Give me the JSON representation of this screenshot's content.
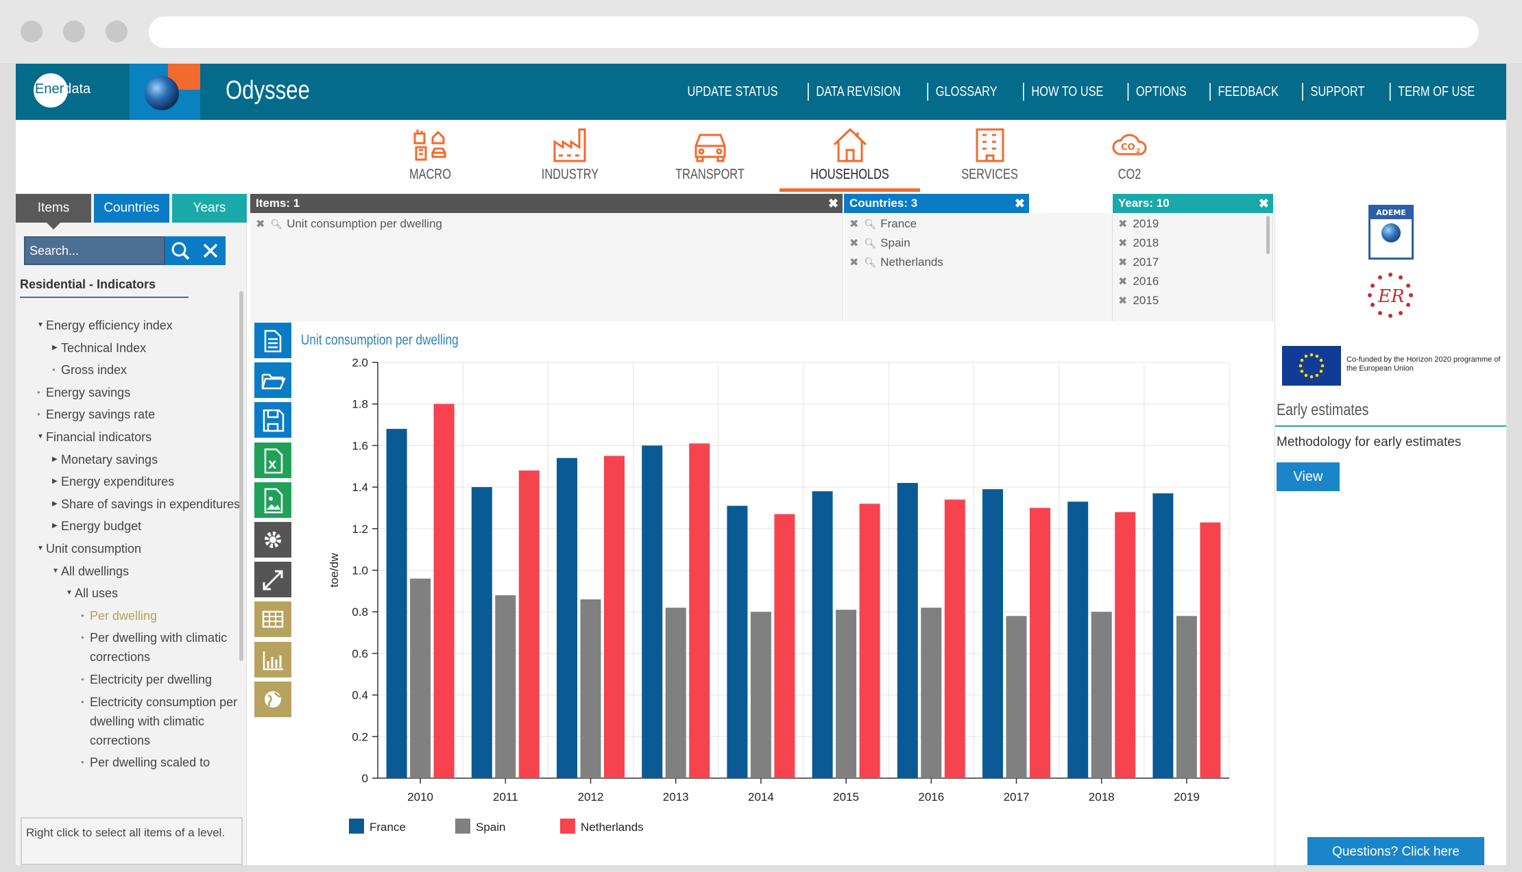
{
  "header": {
    "logo_text": "Enerdata",
    "logo_prefix": "Ener",
    "logo_suffix": "data",
    "app_title": "Odyssee",
    "nav_links": [
      "UPDATE STATUS",
      "DATA REVISION",
      "GLOSSARY",
      "HOW TO USE",
      "OPTIONS",
      "FEEDBACK",
      "SUPPORT",
      "TERM OF USE"
    ]
  },
  "sectors": [
    {
      "label": "MACRO"
    },
    {
      "label": "INDUSTRY"
    },
    {
      "label": "TRANSPORT"
    },
    {
      "label": "HOUSEHOLDS",
      "active": true
    },
    {
      "label": "SERVICES"
    },
    {
      "label": "CO2"
    }
  ],
  "left_panel": {
    "tabs": {
      "items": "Items",
      "countries": "Countries",
      "years": "Years"
    },
    "search_placeholder": "Search...",
    "tree_title": "Residential - Indicators",
    "tree": [
      {
        "label": "Energy efficiency index",
        "level": 0,
        "marker": "down"
      },
      {
        "label": "Technical Index",
        "level": 1,
        "marker": "right"
      },
      {
        "label": "Gross index",
        "level": 1,
        "marker": "dot"
      },
      {
        "label": "Energy savings",
        "level": 0,
        "marker": "dot"
      },
      {
        "label": "Energy savings rate",
        "level": 0,
        "marker": "dot"
      },
      {
        "label": "Financial indicators",
        "level": 0,
        "marker": "down"
      },
      {
        "label": "Monetary savings",
        "level": 1,
        "marker": "right"
      },
      {
        "label": "Energy expenditures",
        "level": 1,
        "marker": "right"
      },
      {
        "label": "Share of savings in expenditures",
        "level": 1,
        "marker": "right"
      },
      {
        "label": "Energy budget",
        "level": 1,
        "marker": "right"
      },
      {
        "label": "Unit consumption",
        "level": 0,
        "marker": "down"
      },
      {
        "label": "All dwellings",
        "level": 1,
        "marker": "down"
      },
      {
        "label": "All uses",
        "level": 2,
        "marker": "down"
      },
      {
        "label": "Per dwelling",
        "level": 3,
        "marker": "dot",
        "highlight": true
      },
      {
        "label": "Per dwelling with climatic corrections",
        "level": 3,
        "marker": "dot"
      },
      {
        "label": "Electricity per dwelling",
        "level": 3,
        "marker": "dot"
      },
      {
        "label": "Electricity consumption per dwelling with climatic corrections",
        "level": 3,
        "marker": "dot"
      },
      {
        "label": "Per dwelling scaled to",
        "level": 3,
        "marker": "dot"
      }
    ],
    "hint": "Right click to select all items of a level."
  },
  "selection": {
    "items_header": "Items: 1",
    "items": [
      "Unit consumption per dwelling"
    ],
    "countries_header": "Countries: 3",
    "countries": [
      "France",
      "Spain",
      "Netherlands"
    ],
    "years_header": "Years: 10",
    "years": [
      "2019",
      "2018",
      "2017",
      "2016",
      "2015"
    ]
  },
  "chart_title": "Unit consumption per dwelling",
  "toolbar": [
    "document-icon",
    "folder-open-icon",
    "save-icon",
    "excel-icon",
    "image-icon",
    "gear-icon",
    "expand-icon",
    "table-icon",
    "bar-chart-icon",
    "globe-icon"
  ],
  "chart_data": {
    "type": "bar",
    "title": "Unit consumption per dwelling",
    "xlabel": "",
    "ylabel": "toe/dw",
    "ylim": [
      0,
      2.0
    ],
    "yticks": [
      "0",
      "0.2",
      "0.4",
      "0.6",
      "0.8",
      "1.0",
      "1.2",
      "1.4",
      "1.6",
      "1.8",
      "2.0"
    ],
    "categories": [
      "2010",
      "2011",
      "2012",
      "2013",
      "2014",
      "2015",
      "2016",
      "2017",
      "2018",
      "2019"
    ],
    "series": [
      {
        "name": "France",
        "color": "#0a5a96",
        "values": [
          1.68,
          1.4,
          1.54,
          1.6,
          1.31,
          1.38,
          1.42,
          1.39,
          1.33,
          1.37
        ]
      },
      {
        "name": "Spain",
        "color": "#808080",
        "values": [
          0.96,
          0.88,
          0.86,
          0.82,
          0.8,
          0.81,
          0.82,
          0.78,
          0.8,
          0.78
        ]
      },
      {
        "name": "Netherlands",
        "color": "#f7434e",
        "values": [
          1.8,
          1.48,
          1.55,
          1.61,
          1.27,
          1.32,
          1.34,
          1.3,
          1.28,
          1.23
        ]
      }
    ],
    "legend": "bottom-left"
  },
  "right_panel": {
    "ademe_label": "ADEME",
    "eu_text": "Co-funded by the Horizon 2020 programme of the European Union",
    "early_title": "Early estimates",
    "early_text": "Methodology for early estimates",
    "view_label": "View"
  },
  "questions_label": "Questions? Click here"
}
